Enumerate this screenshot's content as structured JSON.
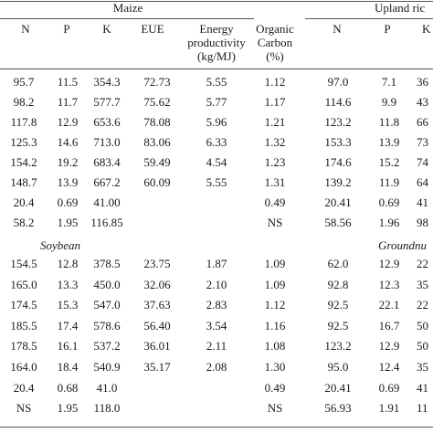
{
  "groups": {
    "maize": "Maize",
    "upland_rice": "Upland ric",
    "soybean": "Soybean",
    "groundnut": "Groundnu"
  },
  "headers": {
    "n1": "N",
    "p1": "P",
    "k1": "K",
    "eue": "EUE",
    "energy_l1": "Energy",
    "energy_l2": "productivity",
    "energy_l3": "(kg/MJ)",
    "oc_l1": "Organic",
    "oc_l2": "Carbon",
    "oc_l3": "(%)",
    "n2": "N",
    "p2": "P",
    "k2": "K"
  },
  "block1": [
    [
      "95.7",
      "11.5",
      "354.3",
      "72.73",
      "5.55",
      "1.12",
      "97.0",
      "7.1",
      "36"
    ],
    [
      "98.2",
      "11.7",
      "577.7",
      "75.62",
      "5.77",
      "1.17",
      "114.6",
      "9.9",
      "43"
    ],
    [
      "117.8",
      "12.9",
      "653.6",
      "78.08",
      "5.96",
      "1.21",
      "123.2",
      "11.8",
      "66"
    ],
    [
      "125.3",
      "14.6",
      "713.0",
      "83.06",
      "6.33",
      "1.32",
      "153.3",
      "13.9",
      "73"
    ],
    [
      "154.2",
      "19.2",
      "683.4",
      "59.49",
      "4.54",
      "1.23",
      "174.6",
      "15.2",
      "74"
    ],
    [
      "148.7",
      "13.9",
      "667.2",
      "60.09",
      "5.55",
      "1.31",
      "139.2",
      "11.9",
      "64"
    ],
    [
      "20.4",
      "0.69",
      "41.00",
      "",
      "",
      "0.49",
      "20.41",
      "0.69",
      "41"
    ],
    [
      "58.2",
      "1.95",
      "116.85",
      "",
      "",
      "NS",
      "58.56",
      "1.96",
      "98"
    ]
  ],
  "block2": [
    [
      "154.5",
      "12.8",
      "378.5",
      "23.75",
      "1.87",
      "1.09",
      "62.0",
      "12.9",
      "22"
    ],
    [
      "165.0",
      "13.3",
      "450.0",
      "32.06",
      "2.10",
      "1.09",
      "92.8",
      "12.3",
      "35"
    ],
    [
      "174.5",
      "15.3",
      "547.0",
      "37.63",
      "2.83",
      "1.12",
      "92.5",
      "22.1",
      "22"
    ],
    [
      "185.5",
      "17.4",
      "578.6",
      "56.40",
      "3.54",
      "1.16",
      "92.5",
      "16.7",
      "50"
    ],
    [
      "178.5",
      "16.1",
      "537.2",
      "36.01",
      "2.11",
      "1.08",
      "123.2",
      "12.9",
      "50"
    ],
    [
      "164.0",
      "18.4",
      "540.9",
      "35.17",
      "2.08",
      "1.30",
      "95.0",
      "12.4",
      "35"
    ],
    [
      "20.4",
      "0.68",
      "41.0",
      "",
      "",
      "0.49",
      "20.41",
      "0.69",
      "41"
    ],
    [
      "NS",
      "1.95",
      "118.0",
      "",
      "",
      "NS",
      "56.93",
      "1.91",
      "11"
    ]
  ]
}
